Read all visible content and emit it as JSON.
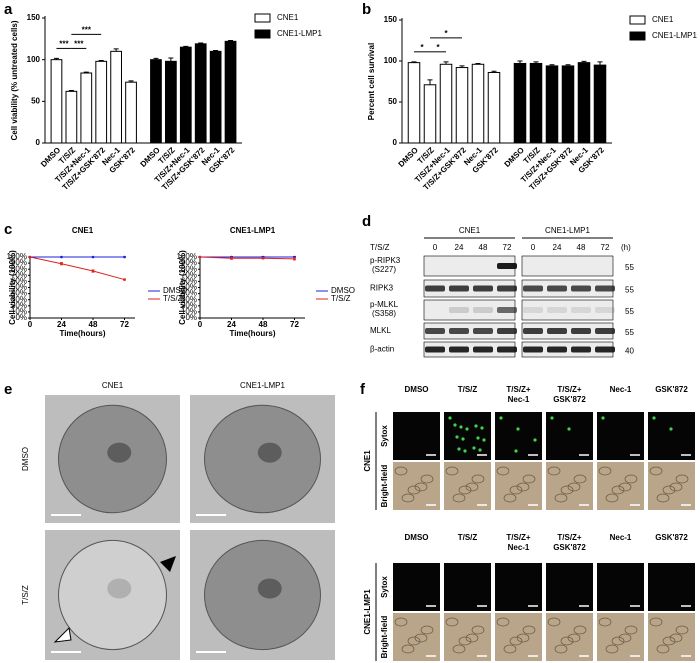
{
  "panel_labels": [
    "a",
    "b",
    "c",
    "d",
    "e",
    "f"
  ],
  "chart_data": [
    {
      "type": "bar",
      "y_label": "Cell viability (% untreated cells)",
      "categories": [
        "DMSO",
        "T/S/Z",
        "T/S/Z+Nec-1",
        "T/S/Z+GSK'872",
        "Nec-1",
        "GSK'872",
        "DMSO",
        "T/S/Z",
        "T/S/Z+Nec-1",
        "T/S/Z+GSK'872",
        "Nec-1",
        "GSK'872"
      ],
      "series": [
        {
          "name": "CNE1",
          "color": "#ffffff",
          "values": [
            100,
            62,
            84,
            98,
            110,
            73,
            null,
            null,
            null,
            null,
            null,
            null
          ],
          "errors": [
            1.5,
            1,
            1,
            1,
            3,
            1.5,
            null,
            null,
            null,
            null,
            null,
            null
          ]
        },
        {
          "name": "CNE1-LMP1",
          "color": "#000000",
          "values": [
            null,
            null,
            null,
            null,
            null,
            null,
            100,
            98,
            115,
            119,
            110,
            122
          ],
          "errors": [
            null,
            null,
            null,
            null,
            null,
            null,
            1.5,
            4,
            1,
            1,
            1,
            1
          ]
        }
      ],
      "ylim": [
        0,
        150
      ],
      "yticks": [
        0,
        50,
        100,
        150
      ],
      "legend": "upper right",
      "annotations": [
        {
          "text": "***",
          "between": [
            0,
            1
          ]
        },
        {
          "text": "***",
          "between": [
            1,
            2
          ]
        },
        {
          "text": "***",
          "between": [
            1,
            3
          ]
        }
      ]
    },
    {
      "type": "bar",
      "y_label": "Percent cell survival",
      "categories": [
        "DMSO",
        "T/S/Z",
        "T/S/Z+Nec-1",
        "T/S/Z+GSK'872",
        "Nec-1",
        "GSK'872",
        "DMSO",
        "T/S/Z",
        "T/S/Z+Nec-1",
        "T/S/Z+GSK'872",
        "Nec-1",
        "GSK'872"
      ],
      "series": [
        {
          "name": "CNE1",
          "color": "#ffffff",
          "values": [
            98,
            71,
            96,
            92,
            96,
            86,
            null,
            null,
            null,
            null,
            null,
            null
          ],
          "errors": [
            1,
            6,
            3,
            2,
            1,
            1.5,
            null,
            null,
            null,
            null,
            null,
            null
          ]
        },
        {
          "name": "CNE1-LMP1",
          "color": "#000000",
          "values": [
            null,
            null,
            null,
            null,
            null,
            null,
            97,
            97,
            94,
            94,
            98,
            95
          ],
          "errors": [
            null,
            null,
            null,
            null,
            null,
            null,
            3,
            2,
            1.5,
            1.5,
            1.5,
            4
          ]
        }
      ],
      "ylim": [
        0,
        150
      ],
      "yticks": [
        0,
        50,
        100,
        150
      ],
      "legend": "upper right",
      "annotations": [
        {
          "text": "*",
          "between": [
            0,
            1
          ]
        },
        {
          "text": "*",
          "between": [
            1,
            2
          ]
        },
        {
          "text": "*",
          "between": [
            1,
            3
          ]
        }
      ]
    },
    {
      "type": "line",
      "title": "CNE1",
      "x_label": "Time(hours)",
      "y_label": "Cell viability (100%)",
      "x": [
        0,
        24,
        48,
        72
      ],
      "xlim": [
        0,
        80
      ],
      "xticks": [
        0,
        24,
        48,
        72
      ],
      "ylim": [
        0,
        100
      ],
      "yticks": [
        {
          "value": 0,
          "label": "0%"
        },
        {
          "value": 10,
          "label": "10%"
        },
        {
          "value": 20,
          "label": "20%"
        },
        {
          "value": 30,
          "label": "30%"
        },
        {
          "value": 40,
          "label": "40%"
        },
        {
          "value": 50,
          "label": "50%"
        },
        {
          "value": 60,
          "label": "60%"
        },
        {
          "value": 70,
          "label": "70%"
        },
        {
          "value": 80,
          "label": "80%"
        },
        {
          "value": 90,
          "label": "90%"
        },
        {
          "value": 100,
          "label": "100%"
        }
      ],
      "series": [
        {
          "name": "DMSO",
          "color": "#1f1fe0",
          "values": [
            100,
            100,
            100,
            100
          ],
          "errors": [
            0,
            0.5,
            0.5,
            0.5
          ]
        },
        {
          "name": "T/S/Z",
          "color": "#e02020",
          "values": [
            100,
            89,
            77,
            63
          ],
          "errors": [
            0,
            2,
            2,
            1
          ]
        }
      ],
      "legend": "right"
    },
    {
      "type": "line",
      "title": "CNE1-LMP1",
      "x_label": "Time(hours)",
      "y_label": "Cell viability (100%)",
      "x": [
        0,
        24,
        48,
        72
      ],
      "xlim": [
        0,
        80
      ],
      "xticks": [
        0,
        24,
        48,
        72
      ],
      "ylim": [
        0,
        100
      ],
      "yticks": [
        {
          "value": 0,
          "label": "0%"
        },
        {
          "value": 10,
          "label": "10%"
        },
        {
          "value": 20,
          "label": "20%"
        },
        {
          "value": 30,
          "label": "30%"
        },
        {
          "value": 40,
          "label": "40%"
        },
        {
          "value": 50,
          "label": "50%"
        },
        {
          "value": 60,
          "label": "60%"
        },
        {
          "value": 70,
          "label": "70%"
        },
        {
          "value": 80,
          "label": "80%"
        },
        {
          "value": 90,
          "label": "90%"
        },
        {
          "value": 100,
          "label": "100%"
        }
      ],
      "series": [
        {
          "name": "DMSO",
          "color": "#1f1fe0",
          "values": [
            100,
            100,
            100,
            100
          ],
          "errors": [
            0,
            1,
            1,
            1
          ]
        },
        {
          "name": "T/S/Z",
          "color": "#e02020",
          "values": [
            100,
            98,
            98,
            97
          ],
          "errors": [
            0,
            2,
            1,
            2
          ]
        }
      ],
      "legend": "right"
    }
  ],
  "blot": {
    "groups": [
      "CNE1",
      "CNE1-LMP1"
    ],
    "treatment": "T/S/Z",
    "times": [
      "0",
      "24",
      "48",
      "72",
      "0",
      "24",
      "48",
      "72"
    ],
    "unit": "(h)",
    "rows": [
      {
        "label": "p-RIPK3",
        "site": "(S227)",
        "marker": "55"
      },
      {
        "label": "RIPK3",
        "marker": "55"
      },
      {
        "label": "p-MLKL",
        "site": "(S358)",
        "marker": "55"
      },
      {
        "label": "MLKL",
        "marker": "55"
      },
      {
        "label": "β-actin",
        "marker": "40"
      }
    ]
  },
  "micrographs": {
    "columns": [
      "CNE1",
      "CNE1-LMP1"
    ],
    "rows": [
      "DMSO",
      "T/S/Z"
    ]
  },
  "fluorescence": {
    "groups": [
      {
        "name": "CNE1",
        "columns": [
          [
            "DMSO"
          ],
          [
            "T/S/Z"
          ],
          [
            "T/S/Z+",
            "Nec-1"
          ],
          [
            "T/S/Z+",
            "GSK'872"
          ],
          [
            "Nec-1"
          ],
          [
            "GSK'872"
          ]
        ],
        "rows": [
          "Sytox",
          "Bright-field"
        ]
      },
      {
        "name": "CNE1-LMP1",
        "columns": [
          [
            "DMSO"
          ],
          [
            "T/S/Z"
          ],
          [
            "T/S/Z+",
            "Nec-1"
          ],
          [
            "T/S/Z+",
            "GSK'872"
          ],
          [
            "Nec-1"
          ],
          [
            "GSK'872"
          ]
        ],
        "rows": [
          "Sytox",
          "Bright-field"
        ]
      }
    ]
  }
}
